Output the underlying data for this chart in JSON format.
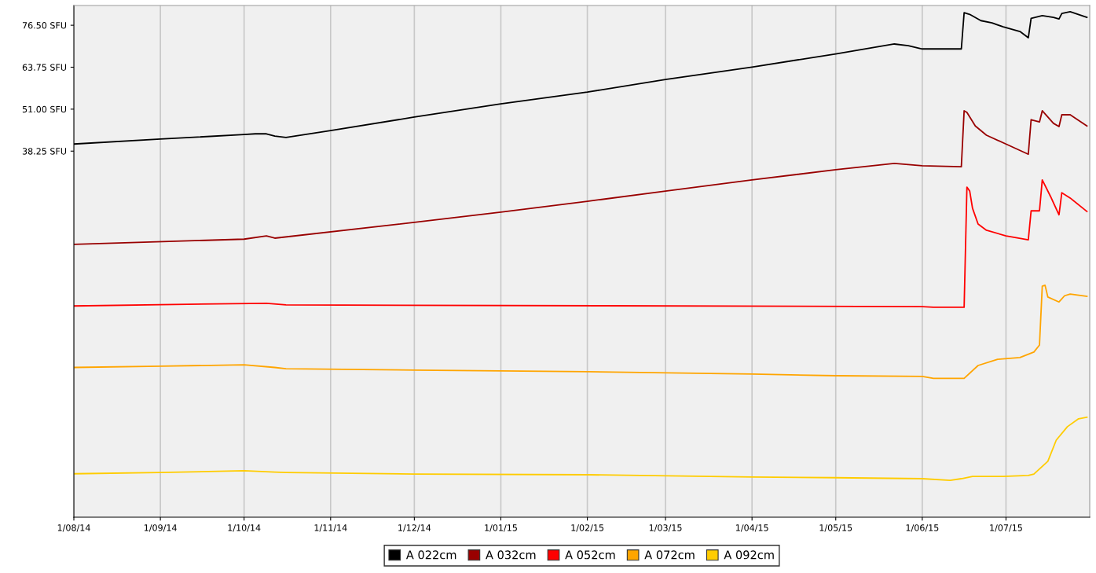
{
  "chart_data": {
    "type": "line",
    "legend": "bottom",
    "grid": "x",
    "marker": "none",
    "line_style": "solid",
    "xlim": [
      "2014-08-01",
      "2015-07-31"
    ],
    "ylim": [
      -73,
      82.5
    ],
    "xticks": [
      {
        "value": "2014-08-01",
        "label": "1/08/14"
      },
      {
        "value": "2014-09-01",
        "label": "1/09/14"
      },
      {
        "value": "2014-10-01",
        "label": "1/10/14"
      },
      {
        "value": "2014-11-01",
        "label": "1/11/14"
      },
      {
        "value": "2014-12-01",
        "label": "1/12/14"
      },
      {
        "value": "2015-01-01",
        "label": "1/01/15"
      },
      {
        "value": "2015-02-01",
        "label": "1/02/15"
      },
      {
        "value": "2015-03-01",
        "label": "1/03/15"
      },
      {
        "value": "2015-04-01",
        "label": "1/04/15"
      },
      {
        "value": "2015-05-01",
        "label": "1/05/15"
      },
      {
        "value": "2015-06-01",
        "label": "1/06/15"
      },
      {
        "value": "2015-07-01",
        "label": "1/07/15"
      }
    ],
    "yticks": [
      {
        "value": 38.25,
        "label": "38.25 SFU"
      },
      {
        "value": 51,
        "label": "51.00 SFU"
      },
      {
        "value": 63.75,
        "label": "63.75 SFU"
      },
      {
        "value": 76.5,
        "label": "76.50 SFU"
      }
    ],
    "series": [
      {
        "name": "A 022cm",
        "color": "#000000",
        "x": [
          "2014-08-01",
          "2014-09-01",
          "2014-10-01",
          "2014-10-05",
          "2014-10-09",
          "2014-10-12",
          "2014-10-16",
          "2014-11-01",
          "2014-12-01",
          "2015-01-01",
          "2015-02-01",
          "2015-03-01",
          "2015-04-01",
          "2015-05-01",
          "2015-05-22",
          "2015-05-27",
          "2015-06-01",
          "2015-06-05",
          "2015-06-15",
          "2015-06-16",
          "2015-06-18",
          "2015-06-22",
          "2015-06-26",
          "2015-06-30",
          "2015-07-06",
          "2015-07-09",
          "2015-07-10",
          "2015-07-14",
          "2015-07-18",
          "2015-07-20",
          "2015-07-21",
          "2015-07-24",
          "2015-07-30"
        ],
        "values": [
          40.4,
          41.9,
          43.3,
          43.5,
          43.5,
          42.8,
          42.4,
          44.5,
          48.6,
          52.6,
          56.2,
          60.0,
          63.8,
          67.8,
          70.8,
          70.3,
          69.3,
          69.3,
          69.3,
          80.3,
          79.8,
          77.9,
          77.2,
          76.0,
          74.6,
          72.7,
          78.6,
          79.4,
          78.9,
          78.4,
          80.1,
          80.6,
          78.9
        ]
      },
      {
        "name": "A 032cm",
        "color": "#990000",
        "x": [
          "2014-08-01",
          "2014-10-01",
          "2014-10-09",
          "2014-10-12",
          "2014-12-01",
          "2015-01-01",
          "2015-02-01",
          "2015-03-01",
          "2015-04-01",
          "2015-05-01",
          "2015-05-22",
          "2015-06-01",
          "2015-06-15",
          "2015-06-16",
          "2015-06-17",
          "2015-06-20",
          "2015-06-24",
          "2015-07-01",
          "2015-07-09",
          "2015-07-10",
          "2015-07-13",
          "2015-07-14",
          "2015-07-18",
          "2015-07-20",
          "2015-07-21",
          "2015-07-24",
          "2015-07-30"
        ],
        "values": [
          9.9,
          11.5,
          12.5,
          11.8,
          16.6,
          19.7,
          23.0,
          26.1,
          29.5,
          32.6,
          34.5,
          33.8,
          33.5,
          50.5,
          50.0,
          45.9,
          43.1,
          40.4,
          37.3,
          47.8,
          47.1,
          50.5,
          46.7,
          45.7,
          49.3,
          49.3,
          45.9
        ]
      },
      {
        "name": "A 052cm",
        "color": "#ff0000",
        "x": [
          "2014-08-01",
          "2014-09-01",
          "2014-10-09",
          "2014-10-16",
          "2015-06-01",
          "2015-06-05",
          "2015-06-16",
          "2015-06-17",
          "2015-06-18",
          "2015-06-19",
          "2015-06-21",
          "2015-06-24",
          "2015-07-01",
          "2015-07-09",
          "2015-07-10",
          "2015-07-13",
          "2015-07-14",
          "2015-07-17",
          "2015-07-20",
          "2015-07-21",
          "2015-07-24",
          "2015-07-30"
        ],
        "values": [
          -8.8,
          -8.4,
          -8.0,
          -8.5,
          -9.0,
          -9.2,
          -9.2,
          27.3,
          26.1,
          20.9,
          16.1,
          14.2,
          12.5,
          11.3,
          20.1,
          20.1,
          29.5,
          24.4,
          18.9,
          25.6,
          24.0,
          19.9
        ]
      },
      {
        "name": "A 072cm",
        "color": "#ffa500",
        "x": [
          "2014-08-01",
          "2014-09-01",
          "2014-10-01",
          "2014-10-12",
          "2014-10-16",
          "2014-12-01",
          "2015-02-01",
          "2015-04-01",
          "2015-05-01",
          "2015-06-01",
          "2015-06-05",
          "2015-06-16",
          "2015-06-21",
          "2015-06-28",
          "2015-07-06",
          "2015-07-11",
          "2015-07-13",
          "2015-07-14",
          "2015-07-15",
          "2015-07-16",
          "2015-07-20",
          "2015-07-22",
          "2015-07-24",
          "2015-07-30"
        ],
        "values": [
          -27.5,
          -27.1,
          -26.7,
          -27.5,
          -27.9,
          -28.3,
          -28.8,
          -29.5,
          -30.0,
          -30.2,
          -30.8,
          -30.8,
          -26.9,
          -25.0,
          -24.5,
          -22.8,
          -20.7,
          -2.8,
          -2.5,
          -6.1,
          -7.6,
          -5.7,
          -5.2,
          -5.9
        ]
      },
      {
        "name": "A 092cm",
        "color": "#ffcc00",
        "x": [
          "2014-08-01",
          "2014-09-01",
          "2014-10-01",
          "2014-10-12",
          "2014-10-16",
          "2014-12-01",
          "2015-02-01",
          "2015-04-01",
          "2015-05-01",
          "2015-06-01",
          "2015-06-11",
          "2015-06-15",
          "2015-06-19",
          "2015-06-30",
          "2015-07-09",
          "2015-07-11",
          "2015-07-16",
          "2015-07-19",
          "2015-07-23",
          "2015-07-27",
          "2015-07-30"
        ],
        "values": [
          -59.8,
          -59.4,
          -58.9,
          -59.3,
          -59.4,
          -59.9,
          -60.1,
          -60.8,
          -61.0,
          -61.3,
          -61.8,
          -61.3,
          -60.6,
          -60.6,
          -60.3,
          -59.9,
          -56.0,
          -49.6,
          -45.5,
          -43.1,
          -42.6
        ]
      }
    ]
  }
}
